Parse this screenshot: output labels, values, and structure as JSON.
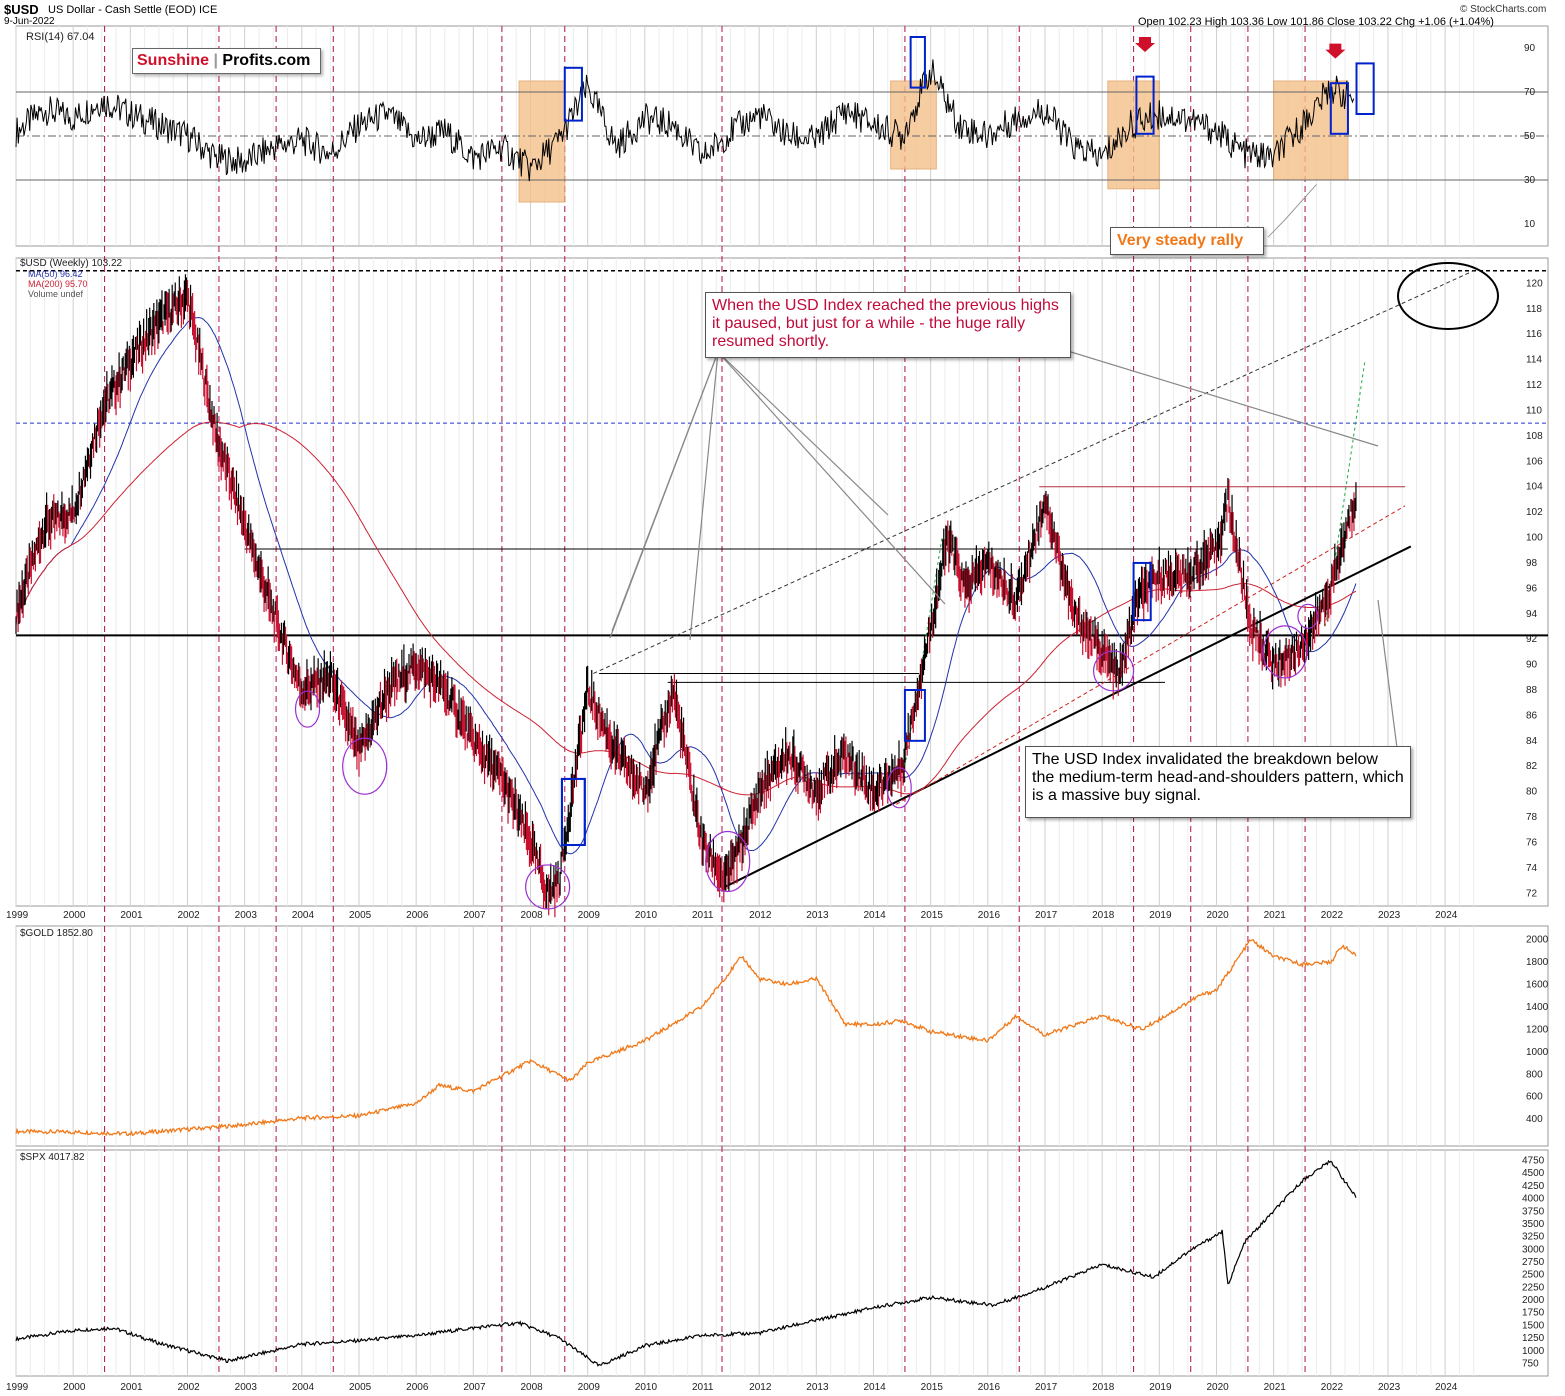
{
  "header": {
    "symbol": "$USD",
    "description": "US Dollar - Cash Settle (EOD) ICE",
    "date": "9-Jun-2022",
    "ohlc": "Open 102.23  High 103.36  Low 101.86  Close 103.22  Chg +1.06 (+1.04%)",
    "credit": "© StockCharts.com"
  },
  "logo": {
    "part1": "Sunshine",
    "part2": "Profits.com"
  },
  "annotations": {
    "steady_rally": "Very steady rally",
    "paused_text": "When the USD Index reached the previous highs it paused, but just for a while - the huge rally resumed shortly.",
    "invalidated_text": "The USD Index invalidated the breakdown below the medium-term head-and-shoulders pattern, which is a massive buy signal."
  },
  "colors": {
    "price_up": "#000000",
    "price_down": "#c8102e",
    "ma50": "#2233aa",
    "ma200": "#cc2233",
    "gold": "#f07818",
    "spx": "#000000",
    "rsi": "#000000",
    "highlight": "#f5c08a",
    "cycle_line": "#b0104a",
    "circle": "#9b30d0",
    "box": "#0022cc",
    "logo_red": "#d0102a"
  },
  "chart_data": [
    {
      "type": "line",
      "panel": "rsi",
      "title": "RSI(14) 67.04",
      "ylim": [
        0,
        100
      ],
      "yticks": [
        10,
        30,
        50,
        70,
        90
      ],
      "x": [
        1999.0,
        1999.5,
        2000.0,
        2000.5,
        2001.0,
        2001.5,
        2002.0,
        2002.5,
        2003.0,
        2003.5,
        2004.0,
        2004.5,
        2005.0,
        2005.5,
        2006.0,
        2006.5,
        2007.0,
        2007.5,
        2008.0,
        2008.5,
        2009.0,
        2009.5,
        2010.0,
        2010.5,
        2011.0,
        2011.5,
        2012.0,
        2012.5,
        2013.0,
        2013.5,
        2014.0,
        2014.5,
        2015.0,
        2015.5,
        2016.0,
        2016.5,
        2017.0,
        2017.5,
        2018.0,
        2018.5,
        2019.0,
        2019.5,
        2020.0,
        2020.5,
        2021.0,
        2021.5,
        2022.0,
        2022.4
      ],
      "values": [
        52,
        62,
        58,
        66,
        60,
        55,
        50,
        40,
        38,
        45,
        48,
        42,
        55,
        60,
        48,
        52,
        40,
        45,
        35,
        48,
        72,
        45,
        58,
        55,
        40,
        52,
        60,
        50,
        48,
        62,
        55,
        50,
        80,
        55,
        50,
        58,
        62,
        45,
        40,
        55,
        60,
        58,
        52,
        42,
        40,
        55,
        72,
        67
      ]
    },
    {
      "type": "line",
      "panel": "usd",
      "series": [
        {
          "name": "$USD (Weekly) 103.22",
          "x": [
            1999.0,
            1999.5,
            2000.0,
            2000.5,
            2001.0,
            2001.5,
            2002.0,
            2002.5,
            2003.0,
            2003.5,
            2004.0,
            2004.5,
            2005.0,
            2005.5,
            2006.0,
            2006.5,
            2007.0,
            2007.5,
            2008.0,
            2008.3,
            2008.5,
            2009.0,
            2009.5,
            2010.0,
            2010.5,
            2011.0,
            2011.4,
            2011.7,
            2012.0,
            2012.5,
            2013.0,
            2013.5,
            2014.0,
            2014.5,
            2015.0,
            2015.3,
            2015.6,
            2016.0,
            2016.5,
            2017.0,
            2017.5,
            2018.0,
            2018.3,
            2018.6,
            2019.0,
            2019.5,
            2020.0,
            2020.2,
            2020.6,
            2021.0,
            2021.4,
            2021.7,
            2022.0,
            2022.3,
            2022.44
          ],
          "values": [
            94,
            101,
            102,
            110,
            114,
            117,
            119,
            108,
            101,
            94,
            88,
            89,
            83,
            88,
            90,
            88,
            84,
            81,
            76,
            72,
            73,
            88,
            83,
            80,
            88,
            76,
            73,
            76,
            80,
            83,
            80,
            83,
            80,
            82,
            93,
            100,
            96,
            98,
            95,
            103,
            94,
            91,
            89,
            95,
            97,
            97,
            99,
            103,
            93,
            90,
            91,
            93,
            96,
            101,
            103.22
          ]
        },
        {
          "name": "MA(50) 96.42"
        },
        {
          "name": "MA(200) 95.70"
        }
      ],
      "legend_extra": "Volume undef",
      "ylim": [
        71,
        122
      ],
      "yticks": [
        72,
        74,
        76,
        78,
        80,
        82,
        84,
        86,
        88,
        90,
        92,
        94,
        96,
        98,
        100,
        102,
        104,
        106,
        108,
        110,
        112,
        114,
        116,
        118,
        120
      ],
      "xticks": [
        "1999",
        "2000",
        "2001",
        "2002",
        "2003",
        "2004",
        "2005",
        "2006",
        "2007",
        "2008",
        "2009",
        "2010",
        "2011",
        "2012",
        "2013",
        "2014",
        "2015",
        "2016",
        "2017",
        "2018",
        "2019",
        "2020",
        "2021",
        "2022",
        "2023",
        "2024"
      ]
    },
    {
      "type": "line",
      "panel": "gold",
      "series": [
        {
          "name": "$GOLD 1852.80",
          "x": [
            1999.0,
            2000.0,
            2001.0,
            2002.0,
            2003.0,
            2004.0,
            2005.0,
            2006.0,
            2006.4,
            2007.0,
            2008.0,
            2008.7,
            2009.0,
            2010.0,
            2011.0,
            2011.7,
            2012.0,
            2012.5,
            2013.0,
            2013.5,
            2014.0,
            2014.5,
            2015.0,
            2016.0,
            2016.5,
            2017.0,
            2018.0,
            2018.7,
            2019.0,
            2019.7,
            2020.0,
            2020.6,
            2021.0,
            2021.5,
            2022.0,
            2022.2,
            2022.44
          ],
          "values": [
            290,
            285,
            270,
            310,
            350,
            410,
            430,
            540,
            700,
            650,
            920,
            740,
            900,
            1100,
            1400,
            1850,
            1650,
            1600,
            1650,
            1250,
            1240,
            1280,
            1180,
            1100,
            1320,
            1150,
            1320,
            1200,
            1290,
            1500,
            1550,
            2000,
            1850,
            1780,
            1800,
            1950,
            1852.8
          ]
        }
      ],
      "yticks": [
        400,
        600,
        800,
        1000,
        1200,
        1400,
        1600,
        1800,
        2000
      ]
    },
    {
      "type": "line",
      "panel": "spx",
      "series": [
        {
          "name": "$SPX 4017.82",
          "x": [
            1999.0,
            2000.0,
            2000.7,
            2001.5,
            2002.7,
            2003.5,
            2004.0,
            2005.0,
            2006.0,
            2007.0,
            2007.8,
            2008.5,
            2009.2,
            2010.0,
            2011.0,
            2012.0,
            2013.0,
            2014.0,
            2015.0,
            2016.1,
            2017.0,
            2018.0,
            2018.9,
            2019.5,
            2020.1,
            2020.2,
            2020.5,
            2021.0,
            2021.5,
            2022.0,
            2022.44
          ],
          "values": [
            1230,
            1400,
            1450,
            1150,
            800,
            1000,
            1130,
            1200,
            1300,
            1450,
            1550,
            1250,
            700,
            1100,
            1300,
            1350,
            1600,
            1850,
            2050,
            1900,
            2250,
            2700,
            2450,
            2950,
            3350,
            2300,
            3150,
            3750,
            4350,
            4750,
            4017.82
          ]
        }
      ],
      "yticks": [
        750,
        1000,
        1250,
        1500,
        1750,
        2000,
        2250,
        2500,
        2750,
        3000,
        3250,
        3500,
        3750,
        4000,
        4250,
        4500,
        4750
      ]
    }
  ]
}
